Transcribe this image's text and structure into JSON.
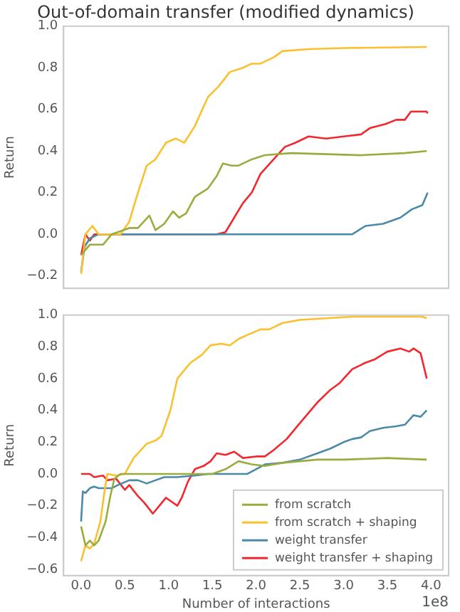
{
  "chart_data": [
    {
      "type": "line",
      "title": "Out-of-domain transfer (modified dynamics)",
      "ylabel": "Return",
      "tick_labels": "y",
      "xlim": [
        -0.2,
        4.2
      ],
      "ylim": [
        -0.26,
        1.0
      ],
      "yticks": [
        {
          "value": -0.2,
          "label": "−0.2"
        },
        {
          "value": 0,
          "label": "0.0"
        },
        {
          "value": 0.2,
          "label": "0.2"
        },
        {
          "value": 0.4,
          "label": "0.4"
        },
        {
          "value": 0.6,
          "label": "0.6"
        },
        {
          "value": 0.8,
          "label": "0.8"
        },
        {
          "value": 1,
          "label": "1.0"
        }
      ],
      "series": [
        {
          "color": "#9aac3e",
          "x": [
            0,
            0.1,
            0.25,
            0.35,
            0.55,
            0.65,
            0.78,
            0.85,
            0.95,
            1.05,
            1.12,
            1.2,
            1.3,
            1.45,
            1.55,
            1.62,
            1.72,
            1.8,
            1.95,
            2.1,
            2.4,
            3.2,
            3.7,
            3.95
          ],
          "values": [
            -0.1,
            -0.05,
            -0.05,
            0,
            0.03,
            0.03,
            0.09,
            0.02,
            0.05,
            0.11,
            0.08,
            0.1,
            0.18,
            0.22,
            0.28,
            0.34,
            0.33,
            0.33,
            0.36,
            0.38,
            0.39,
            0.38,
            0.39,
            0.4
          ]
        },
        {
          "color": "#fbc02d",
          "x": [
            0,
            0.05,
            0.13,
            0.2,
            0.45,
            0.55,
            0.65,
            0.75,
            0.85,
            0.97,
            1.08,
            1.18,
            1.3,
            1.45,
            1.57,
            1.7,
            1.85,
            1.95,
            2.05,
            2.2,
            2.3,
            2.6,
            3.0,
            3.95
          ],
          "values": [
            -0.19,
            0,
            0.04,
            0,
            0,
            0.06,
            0.2,
            0.33,
            0.36,
            0.44,
            0.46,
            0.44,
            0.52,
            0.66,
            0.71,
            0.78,
            0.8,
            0.82,
            0.82,
            0.85,
            0.88,
            0.89,
            0.895,
            0.9
          ]
        },
        {
          "color": "#4a8aa8",
          "x": [
            0,
            0.04,
            0.1,
            0.2,
            3.1,
            3.25,
            3.45,
            3.65,
            3.78,
            3.9,
            3.96
          ],
          "values": [
            -0.18,
            -0.06,
            -0.02,
            0,
            0,
            0.04,
            0.05,
            0.08,
            0.12,
            0.14,
            0.2
          ]
        },
        {
          "color": "#f2282e",
          "x": [
            0,
            0.05,
            0.1,
            0.15,
            1.55,
            1.65,
            1.75,
            1.85,
            1.95,
            2.05,
            2.2,
            2.33,
            2.45,
            2.6,
            2.8,
            3.0,
            3.2,
            3.3,
            3.48,
            3.6,
            3.7,
            3.77,
            3.95,
            3.96
          ],
          "values": [
            -0.1,
            0,
            -0.03,
            0,
            0,
            0.01,
            0.08,
            0.15,
            0.2,
            0.29,
            0.36,
            0.42,
            0.44,
            0.47,
            0.46,
            0.47,
            0.48,
            0.51,
            0.53,
            0.55,
            0.55,
            0.59,
            0.59,
            0.58
          ]
        }
      ]
    },
    {
      "type": "line",
      "ylabel": "Return",
      "xlabel": "Number of interactions",
      "legend": "bottom right",
      "annotations": [
        "1e8"
      ],
      "xlim": [
        -0.2,
        4.2
      ],
      "ylim": [
        -0.64,
        1.0
      ],
      "xticks": [
        {
          "value": 0,
          "label": "0.0"
        },
        {
          "value": 0.5,
          "label": "0.5"
        },
        {
          "value": 1,
          "label": "1.0"
        },
        {
          "value": 1.5,
          "label": "1.5"
        },
        {
          "value": 2,
          "label": "2.0"
        },
        {
          "value": 2.5,
          "label": "2.5"
        },
        {
          "value": 3,
          "label": "3.0"
        },
        {
          "value": 3.5,
          "label": "3.5"
        },
        {
          "value": 4,
          "label": "4.0"
        }
      ],
      "yticks": [
        {
          "value": -0.6,
          "label": "−0.6"
        },
        {
          "value": -0.4,
          "label": "−0.4"
        },
        {
          "value": -0.2,
          "label": "−0.2"
        },
        {
          "value": 0,
          "label": "0.0"
        },
        {
          "value": 0.2,
          "label": "0.2"
        },
        {
          "value": 0.4,
          "label": "0.4"
        },
        {
          "value": 0.6,
          "label": "0.6"
        },
        {
          "value": 0.8,
          "label": "0.8"
        },
        {
          "value": 1,
          "label": "1.0"
        }
      ],
      "series": [
        {
          "name": "from scratch",
          "color": "#9aac3e",
          "x": [
            0,
            0.05,
            0.1,
            0.15,
            0.2,
            0.28,
            0.33,
            0.38,
            0.45,
            1.5,
            1.65,
            1.8,
            1.95,
            2.1,
            2.3,
            2.5,
            2.7,
            3.0,
            3.5,
            3.95
          ],
          "values": [
            -0.33,
            -0.45,
            -0.42,
            -0.45,
            -0.42,
            -0.3,
            -0.15,
            -0.03,
            0,
            0,
            0.03,
            0.08,
            0.06,
            0.05,
            0.07,
            0.08,
            0.09,
            0.09,
            0.1,
            0.09
          ]
        },
        {
          "name": "from scratch + shaping",
          "color": "#fbc02d",
          "x": [
            0,
            0.05,
            0.1,
            0.15,
            0.22,
            0.27,
            0.3,
            0.4,
            0.5,
            0.6,
            0.75,
            0.85,
            0.92,
            1.02,
            1.1,
            1.25,
            1.38,
            1.48,
            1.6,
            1.7,
            1.8,
            1.92,
            2.05,
            2.15,
            2.3,
            2.5,
            2.8,
            3.1,
            3.5,
            3.9,
            3.95
          ],
          "values": [
            -0.55,
            -0.45,
            -0.47,
            -0.44,
            -0.3,
            -0.1,
            0,
            -0.01,
            0,
            0.1,
            0.19,
            0.21,
            0.24,
            0.4,
            0.6,
            0.7,
            0.75,
            0.81,
            0.82,
            0.81,
            0.85,
            0.88,
            0.91,
            0.91,
            0.95,
            0.97,
            0.98,
            0.99,
            0.99,
            0.99,
            0.98
          ]
        },
        {
          "name": "weight transfer",
          "color": "#4a8aa8",
          "x": [
            0,
            0.02,
            0.05,
            0.1,
            0.15,
            0.2,
            0.35,
            0.42,
            0.55,
            0.65,
            0.75,
            0.85,
            0.95,
            1.1,
            1.3,
            1.45,
            1.9,
            2.0,
            2.1,
            2.3,
            2.5,
            2.7,
            2.85,
            3.0,
            3.1,
            3.2,
            3.3,
            3.45,
            3.6,
            3.7,
            3.8,
            3.88,
            3.95
          ],
          "values": [
            -0.3,
            -0.11,
            -0.12,
            -0.09,
            -0.08,
            -0.09,
            -0.09,
            -0.07,
            -0.04,
            -0.04,
            -0.06,
            -0.04,
            -0.02,
            -0.02,
            -0.01,
            0,
            0,
            0.03,
            0.06,
            0.07,
            0.09,
            0.13,
            0.16,
            0.2,
            0.22,
            0.23,
            0.27,
            0.29,
            0.3,
            0.31,
            0.37,
            0.36,
            0.4
          ]
        },
        {
          "name": "weight transfer + shaping",
          "color": "#f2282e",
          "x": [
            0,
            0.1,
            0.15,
            0.25,
            0.3,
            0.4,
            0.5,
            0.55,
            0.65,
            0.72,
            0.82,
            0.88,
            0.97,
            1.1,
            1.15,
            1.22,
            1.3,
            1.4,
            1.48,
            1.55,
            1.65,
            1.75,
            1.85,
            2.0,
            2.1,
            2.2,
            2.35,
            2.5,
            2.7,
            2.85,
            2.95,
            3.1,
            3.25,
            3.35,
            3.5,
            3.65,
            3.75,
            3.8,
            3.88,
            3.95
          ],
          "values": [
            0,
            0,
            -0.02,
            -0.01,
            -0.04,
            -0.03,
            -0.1,
            -0.07,
            -0.14,
            -0.18,
            -0.25,
            -0.21,
            -0.15,
            -0.2,
            -0.15,
            -0.05,
            0.03,
            0.05,
            0.08,
            0.13,
            0.12,
            0.14,
            0.1,
            0.11,
            0.11,
            0.15,
            0.22,
            0.32,
            0.45,
            0.53,
            0.57,
            0.66,
            0.7,
            0.72,
            0.77,
            0.79,
            0.77,
            0.79,
            0.76,
            0.6
          ]
        }
      ]
    }
  ]
}
